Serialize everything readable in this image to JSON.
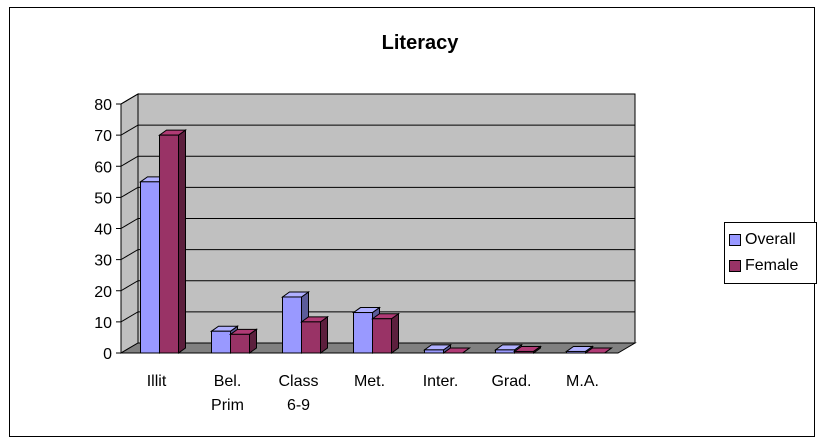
{
  "chart_data": {
    "type": "bar",
    "title": "Literacy",
    "categories": [
      [
        "Illit"
      ],
      [
        "Bel.",
        "Prim"
      ],
      [
        "Class",
        "6-9"
      ],
      [
        "Met."
      ],
      [
        "Inter."
      ],
      [
        "Grad."
      ],
      [
        "M.A."
      ]
    ],
    "series": [
      {
        "name": "Overall",
        "values": [
          55,
          7,
          18,
          13,
          1,
          1,
          0.5
        ],
        "color": "#9999ff"
      },
      {
        "name": "Female",
        "values": [
          70,
          6,
          10,
          11,
          0,
          0.5,
          0
        ],
        "color": "#993366"
      }
    ],
    "ylim": [
      0,
      80
    ],
    "yticks": [
      "0",
      "10",
      "20",
      "30",
      "40",
      "50",
      "60",
      "70",
      "80"
    ],
    "grid": true,
    "legend": "right",
    "wall_color": "#c0c0c0",
    "floor_color": "#808080"
  }
}
